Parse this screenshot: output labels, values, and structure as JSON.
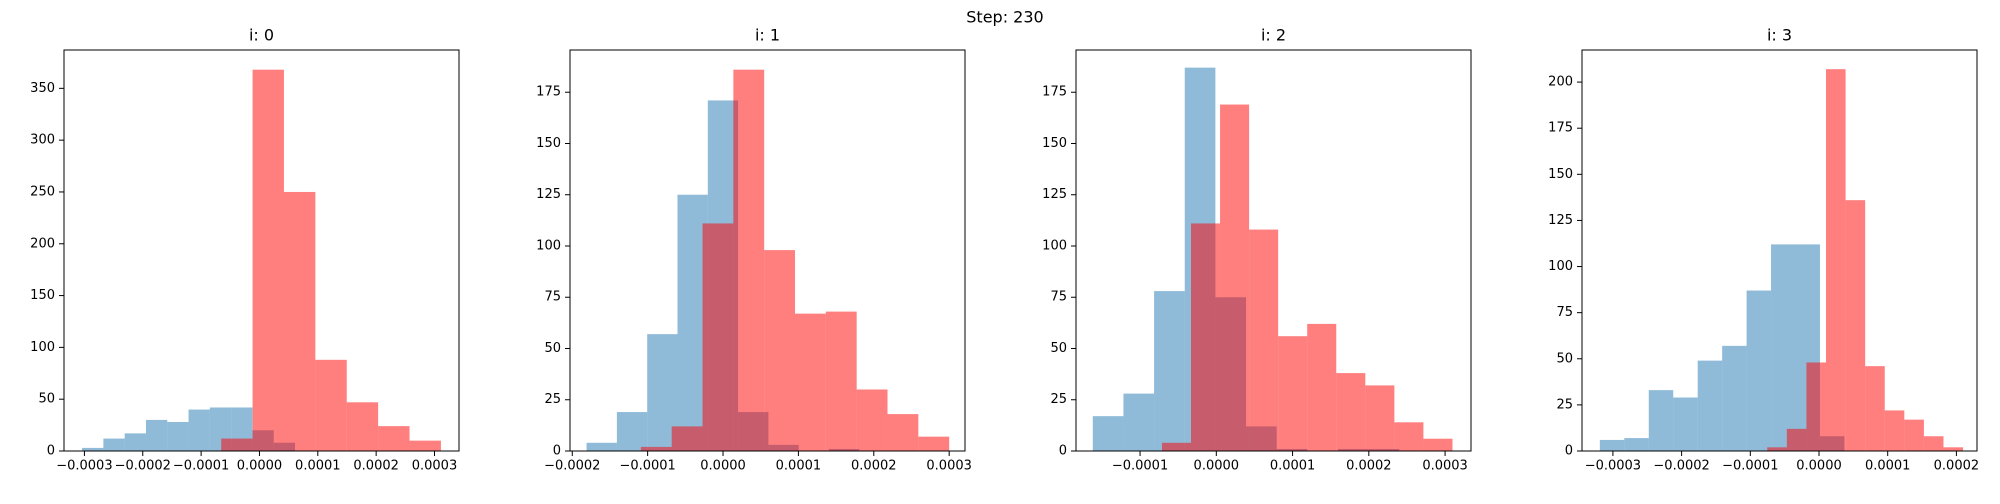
{
  "title": "Step: 230",
  "chart_data": [
    {
      "type": "histogram",
      "title": "i: 0",
      "xlim": [
        -0.000335,
        0.000342
      ],
      "ylim": [
        0,
        387
      ],
      "xticks": [
        {
          "value": -0.0003,
          "label": "−0.0003"
        },
        {
          "value": -0.0002,
          "label": "−0.0002"
        },
        {
          "value": -0.0001,
          "label": "−0.0001"
        },
        {
          "value": 0,
          "label": "0.0000"
        },
        {
          "value": 0.0001,
          "label": "0.0001"
        },
        {
          "value": 0.0002,
          "label": "0.0002"
        },
        {
          "value": 0.0003,
          "label": "0.0003"
        }
      ],
      "yticks": [
        0,
        50,
        100,
        150,
        200,
        250,
        300,
        350
      ],
      "series": [
        {
          "color": "#1f77b4",
          "alpha": 0.5,
          "bins": [
            -0.000304,
            -0.0002675,
            -0.000231,
            -0.0001945,
            -0.000158,
            -0.0001215,
            -8.5e-05,
            -4.85e-05,
            -1.2e-05,
            2.45e-05,
            6.1e-05
          ],
          "values": [
            3,
            12,
            17,
            30,
            28,
            40,
            42,
            42,
            20,
            8
          ]
        },
        {
          "color": "#ff0000",
          "alpha": 0.5,
          "bins": [
            -0.000227,
            -0.0001732,
            -0.0001194,
            -6.56e-05,
            -1.18e-05,
            4.2e-05,
            9.58e-05,
            0.0001496,
            0.0002034,
            0.0002572,
            0.000311
          ],
          "values": [
            0,
            0,
            0,
            12,
            368,
            250,
            88,
            47,
            24,
            10
          ]
        }
      ]
    },
    {
      "type": "histogram",
      "title": "i: 1",
      "xlim": [
        -0.000203,
        0.000321
      ],
      "ylim": [
        0,
        195.6
      ],
      "xticks": [
        {
          "value": -0.0002,
          "label": "−0.0002"
        },
        {
          "value": -0.0001,
          "label": "−0.0001"
        },
        {
          "value": 0,
          "label": "0.0000"
        },
        {
          "value": 0.0001,
          "label": "0.0001"
        },
        {
          "value": 0.0002,
          "label": "0.0002"
        },
        {
          "value": 0.0003,
          "label": "0.0003"
        }
      ],
      "yticks": [
        0,
        25,
        50,
        75,
        100,
        125,
        150,
        175
      ],
      "series": [
        {
          "color": "#1f77b4",
          "alpha": 0.5,
          "bins": [
            -0.000181,
            -0.0001408,
            -0.0001006,
            -6.04e-05,
            -2.02e-05,
            2e-05,
            6.02e-05,
            0.0001004,
            0.0001406,
            0.0001808,
            0.000221
          ],
          "values": [
            4,
            19,
            57,
            125,
            171,
            19,
            3,
            0,
            1,
            0
          ]
        },
        {
          "color": "#ff0000",
          "alpha": 0.5,
          "bins": [
            -0.000109,
            -6.81e-05,
            -2.72e-05,
            1.37e-05,
            5.46e-05,
            9.55e-05,
            0.0001364,
            0.0001773,
            0.0002182,
            0.0002591,
            0.0003
          ],
          "values": [
            2,
            12,
            111,
            186,
            98,
            67,
            68,
            30,
            18,
            7
          ]
        }
      ]
    },
    {
      "type": "histogram",
      "title": "i: 2",
      "xlim": [
        -0.000184,
        0.000334
      ],
      "ylim": [
        0,
        195.6
      ],
      "xticks": [
        {
          "value": -0.0001,
          "label": "−0.0001"
        },
        {
          "value": 0,
          "label": "0.0000"
        },
        {
          "value": 0.0001,
          "label": "0.0001"
        },
        {
          "value": 0.0002,
          "label": "0.0002"
        },
        {
          "value": 0.0003,
          "label": "0.0003"
        }
      ],
      "yticks": [
        0,
        25,
        50,
        75,
        100,
        125,
        150,
        175
      ],
      "series": [
        {
          "color": "#1f77b4",
          "alpha": 0.5,
          "bins": [
            -0.000162,
            -0.0001218,
            -8.16e-05,
            -4.14e-05,
            -1.2e-06,
            3.9e-05,
            7.92e-05,
            0.0001194,
            0.0001596,
            0.0001998,
            0.00024
          ],
          "values": [
            17,
            28,
            78,
            187,
            75,
            12,
            1,
            0,
            1,
            1
          ]
        },
        {
          "color": "#ff0000",
          "alpha": 0.5,
          "bins": [
            -7.13e-05,
            -3.32e-05,
            4.9e-06,
            4.3e-05,
            8.11e-05,
            0.0001192,
            0.0001573,
            0.0001954,
            0.0002335,
            0.0002716,
            0.0003097
          ],
          "values": [
            4,
            111,
            169,
            108,
            56,
            62,
            38,
            32,
            14,
            6
          ]
        }
      ]
    },
    {
      "type": "histogram",
      "title": "i: 3",
      "xlim": [
        -0.000345,
        0.00023
      ],
      "ylim": [
        0,
        217.4
      ],
      "xticks": [
        {
          "value": -0.0003,
          "label": "−0.0003"
        },
        {
          "value": -0.0002,
          "label": "−0.0002"
        },
        {
          "value": -0.0001,
          "label": "−0.0001"
        },
        {
          "value": 0,
          "label": "0.0000"
        },
        {
          "value": 0.0001,
          "label": "0.0001"
        },
        {
          "value": 0.0002,
          "label": "0.0002"
        }
      ],
      "yticks": [
        0,
        25,
        50,
        75,
        100,
        125,
        150,
        175,
        200
      ],
      "series": [
        {
          "color": "#1f77b4",
          "alpha": 0.5,
          "bins": [
            -0.000319,
            -0.0002834,
            -0.0002478,
            -0.0002122,
            -0.0001766,
            -0.000141,
            -0.0001054,
            -6.98e-05,
            -3.42e-05,
            1.4e-06,
            3.7e-05
          ],
          "values": [
            6,
            7,
            33,
            29,
            49,
            57,
            87,
            112,
            112,
            8
          ]
        },
        {
          "color": "#ff0000",
          "alpha": 0.5,
          "bins": [
            -7.53e-05,
            -4.68e-05,
            -1.83e-05,
            1.02e-05,
            3.87e-05,
            6.72e-05,
            9.57e-05,
            0.0001242,
            0.0001527,
            0.0001812,
            0.0002097
          ],
          "values": [
            2,
            12,
            48,
            207,
            136,
            46,
            22,
            17,
            8,
            2
          ]
        }
      ]
    }
  ]
}
